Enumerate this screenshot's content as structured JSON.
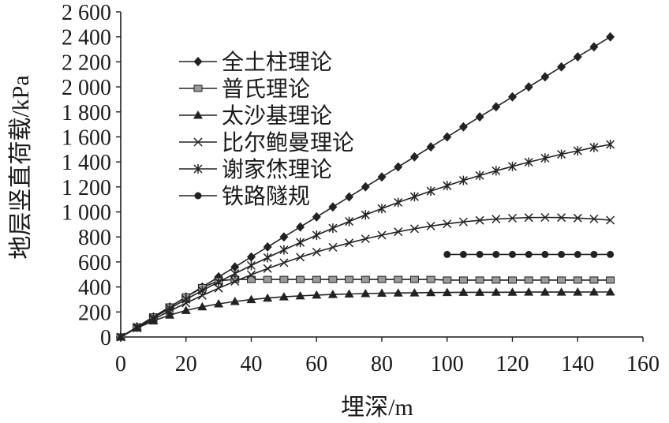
{
  "chart_data": {
    "type": "line",
    "title": "",
    "xlabel": "埋深/m",
    "ylabel": "地层竖直荷载/kPa",
    "xlim": [
      0,
      160
    ],
    "ylim": [
      0,
      2600
    ],
    "grid": false,
    "legend_position": "top-left",
    "line_color": "#222222",
    "square_marker_fill": "#9a9a9a",
    "x_ticks": [
      0,
      20,
      40,
      60,
      80,
      100,
      120,
      140,
      160
    ],
    "x_tick_labels": [
      "0",
      "20",
      "40",
      "60",
      "80",
      "100",
      "120",
      "140",
      "160"
    ],
    "y_ticks": [
      0,
      200,
      400,
      600,
      800,
      1000,
      1200,
      1400,
      1600,
      1800,
      2000,
      2200,
      2400,
      2600
    ],
    "y_tick_labels": [
      "0",
      "200",
      "400",
      "600",
      "800",
      "1 000",
      "1 200",
      "1 400",
      "1 600",
      "1 800",
      "2 000",
      "2 200",
      "2 400",
      "2 600"
    ],
    "x": [
      0,
      5,
      10,
      15,
      20,
      25,
      30,
      35,
      40,
      45,
      50,
      55,
      60,
      65,
      70,
      75,
      80,
      85,
      90,
      95,
      100,
      105,
      110,
      115,
      120,
      125,
      130,
      135,
      140,
      145,
      150
    ],
    "series": [
      {
        "name": "全土柱理论",
        "marker": "diamond",
        "y": [
          0,
          80,
          160,
          240,
          320,
          400,
          480,
          560,
          640,
          720,
          800,
          880,
          960,
          1040,
          1120,
          1200,
          1280,
          1360,
          1440,
          1520,
          1600,
          1680,
          1760,
          1840,
          1920,
          2000,
          2080,
          2160,
          2240,
          2320,
          2400
        ]
      },
      {
        "name": "普氏理论",
        "marker": "square",
        "y": [
          0,
          80,
          160,
          240,
          320,
          395,
          450,
          460,
          460,
          460,
          460,
          460,
          460,
          460,
          460,
          460,
          460,
          460,
          460,
          460,
          455,
          455,
          455,
          455,
          455,
          455,
          455,
          455,
          455,
          455,
          455
        ]
      },
      {
        "name": "太沙基理论",
        "marker": "triangle",
        "y": [
          0,
          72,
          129,
          175,
          212,
          241,
          265,
          284,
          299,
          311,
          321,
          329,
          335,
          340,
          344,
          347,
          350,
          352,
          353,
          355,
          356,
          357,
          357,
          358,
          358,
          359,
          359,
          359,
          359,
          360,
          360
        ]
      },
      {
        "name": "比尔鲍曼理论",
        "marker": "x",
        "y": [
          0,
          72,
          141,
          208,
          271,
          332,
          390,
          445,
          498,
          547,
          594,
          638,
          679,
          717,
          752,
          785,
          814,
          841,
          865,
          887,
          905,
          921,
          933,
          943,
          950,
          955,
          956,
          955,
          951,
          944,
          934
        ]
      },
      {
        "name": "谢家烋理论",
        "marker": "asterisk",
        "y": [
          0,
          78,
          154,
          228,
          301,
          371,
          440,
          507,
          572,
          635,
          697,
          756,
          814,
          870,
          924,
          976,
          1027,
          1076,
          1122,
          1167,
          1210,
          1252,
          1291,
          1329,
          1364,
          1398,
          1430,
          1461,
          1489,
          1516,
          1540
        ]
      },
      {
        "name": "铁路隧规",
        "marker": "circle",
        "x": [
          100,
          105,
          110,
          115,
          120,
          125,
          130,
          135,
          140,
          145,
          150
        ],
        "y": [
          660,
          660,
          660,
          660,
          660,
          660,
          660,
          660,
          660,
          660,
          660
        ]
      }
    ]
  }
}
